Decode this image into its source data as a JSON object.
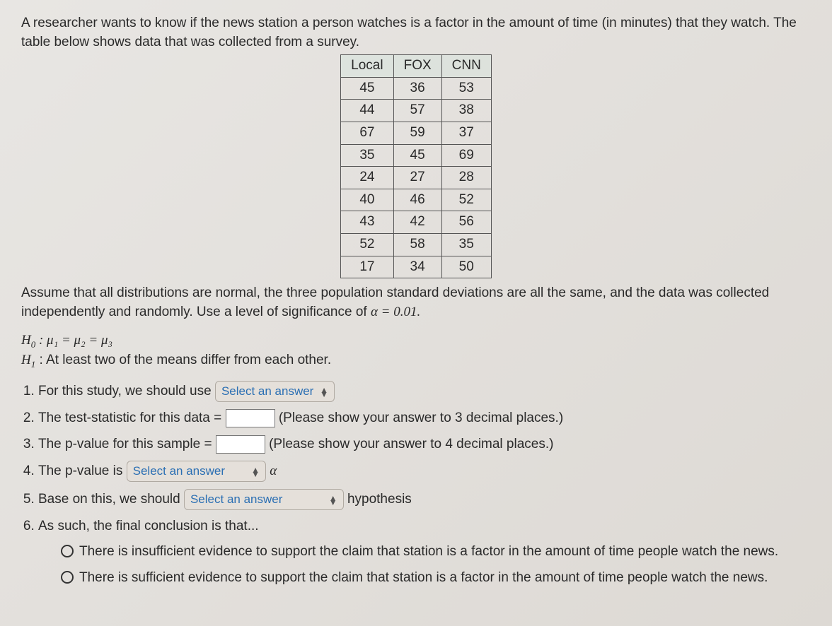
{
  "intro": "A researcher wants to know if the news station a person watches is a factor in the amount of time (in minutes) that they watch. The table below shows data that was collected from a survey.",
  "table": {
    "columns": [
      "Local",
      "FOX",
      "CNN"
    ],
    "rows": [
      [
        45,
        36,
        53
      ],
      [
        44,
        57,
        38
      ],
      [
        67,
        59,
        37
      ],
      [
        35,
        45,
        69
      ],
      [
        24,
        27,
        28
      ],
      [
        40,
        46,
        52
      ],
      [
        43,
        42,
        56
      ],
      [
        52,
        58,
        35
      ],
      [
        17,
        34,
        50
      ]
    ],
    "border_color": "#555555",
    "header_bg": "#d9ece4"
  },
  "assume_pre": "Assume that all distributions are normal, the three population standard deviations are all the same, and the data was collected independently and randomly. Use a level of significance of ",
  "assume_alpha": "α = 0.01.",
  "h0_label": "H",
  "h0_sub": "0",
  "h0_text": " : μ₁ = μ₂ = μ₃",
  "h1_label": "H",
  "h1_sub": "1",
  "h1_text": " : At least two of the means differ from each other.",
  "q1_pre": "For this study, we should use ",
  "q1_select": "Select an answer",
  "q2_pre": "The test-statistic for this data = ",
  "q2_post": " (Please show your answer to 3 decimal places.)",
  "q3_pre": "The p-value for this sample = ",
  "q3_post": " (Please show your answer to 4 decimal places.)",
  "q4_pre": "The p-value is ",
  "q4_select": "Select an answer",
  "q4_post": " α",
  "q5_pre": "Base on this, we should ",
  "q5_select": "Select an answer",
  "q5_post": " hypothesis",
  "q6": "As such, the final conclusion is that...",
  "opt1": "There is insufficient evidence to support the claim that station is a factor in the amount of time people watch the news.",
  "opt2": "There is sufficient evidence to support the claim that station is a factor in the amount of time people watch the news.",
  "colors": {
    "background": "#e4e1dc",
    "text": "#2a2a2a",
    "link_blue": "#2b6fb3"
  }
}
